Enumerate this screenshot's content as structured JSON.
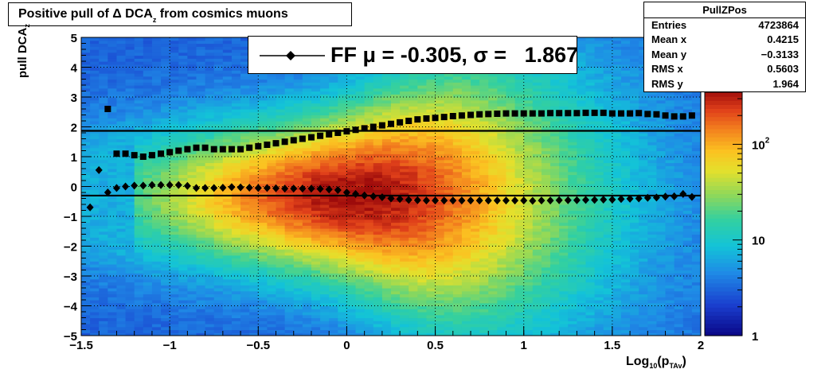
{
  "title": {
    "prefix": "Positive pull of ",
    "delta": "Δ",
    "mid": " DCA",
    "sub": "z",
    "suffix": " from cosmics muons"
  },
  "stats": {
    "name": "PullZPos",
    "rows": [
      {
        "label": "Entries",
        "value": "4723864"
      },
      {
        "label": "Mean x",
        "value": "0.4215"
      },
      {
        "label": "Mean y",
        "value": "−0.3133"
      },
      {
        "label": "RMS x",
        "value": "0.5603"
      },
      {
        "label": "RMS y",
        "value": "1.964"
      }
    ]
  },
  "legend": {
    "text": "FF μ = -0.305, σ =   1.867"
  },
  "ylabel": {
    "main": "pull DCA",
    "sub": "z"
  },
  "xlabel": {
    "main": "Log",
    "sub10": "10",
    "mid": "(p",
    "subT": "TAv",
    "end": ")"
  },
  "chart_data": {
    "type": "heatmap",
    "title": "Positive pull of Δ DCA_z from cosmics muons",
    "xlabel": "Log10(p_TAv)",
    "ylabel": "pull DCA_z",
    "xlim": [
      -1.5,
      2
    ],
    "ylim": [
      -5,
      5
    ],
    "zscale": "log",
    "x_ticks": [
      "−1.5",
      "−1",
      "−0.5",
      "0",
      "0.5",
      "1",
      "1.5",
      "2"
    ],
    "y_ticks": [
      "−5",
      "−4",
      "−3",
      "−2",
      "−1",
      "0",
      "1",
      "2",
      "3",
      "4",
      "5"
    ],
    "z_ticks": [
      "1",
      "10",
      "10^2"
    ],
    "grid": true,
    "fit_lines": [
      {
        "name": "mean",
        "y": -0.305
      },
      {
        "name": "sigma",
        "y": 1.867
      }
    ],
    "series": [
      {
        "name": "mean",
        "marker": "diamond",
        "x": [
          -1.45,
          -1.4,
          -1.35,
          -1.3,
          -1.25,
          -1.2,
          -1.15,
          -1.1,
          -1.05,
          -1.0,
          -0.95,
          -0.9,
          -0.85,
          -0.8,
          -0.75,
          -0.7,
          -0.65,
          -0.6,
          -0.55,
          -0.5,
          -0.45,
          -0.4,
          -0.35,
          -0.3,
          -0.25,
          -0.2,
          -0.15,
          -0.1,
          -0.05,
          0.0,
          0.05,
          0.1,
          0.15,
          0.2,
          0.25,
          0.3,
          0.35,
          0.4,
          0.45,
          0.5,
          0.55,
          0.6,
          0.65,
          0.7,
          0.75,
          0.8,
          0.85,
          0.9,
          0.95,
          1.0,
          1.05,
          1.1,
          1.15,
          1.2,
          1.25,
          1.3,
          1.35,
          1.4,
          1.45,
          1.5,
          1.55,
          1.6,
          1.65,
          1.7,
          1.75,
          1.8,
          1.85,
          1.9,
          1.95
        ],
        "y": [
          -0.7,
          0.55,
          -0.2,
          -0.05,
          0.0,
          0.03,
          0.03,
          0.05,
          0.05,
          0.05,
          0.05,
          0.02,
          -0.05,
          -0.05,
          -0.05,
          -0.04,
          -0.02,
          -0.03,
          -0.04,
          -0.05,
          -0.05,
          -0.06,
          -0.07,
          -0.07,
          -0.07,
          -0.07,
          -0.08,
          -0.1,
          -0.12,
          -0.2,
          -0.25,
          -0.3,
          -0.33,
          -0.36,
          -0.4,
          -0.42,
          -0.45,
          -0.46,
          -0.47,
          -0.47,
          -0.47,
          -0.47,
          -0.47,
          -0.47,
          -0.47,
          -0.47,
          -0.47,
          -0.47,
          -0.47,
          -0.47,
          -0.48,
          -0.47,
          -0.47,
          -0.46,
          -0.46,
          -0.46,
          -0.45,
          -0.45,
          -0.44,
          -0.44,
          -0.42,
          -0.41,
          -0.4,
          -0.38,
          -0.37,
          -0.34,
          -0.33,
          -0.25,
          -0.35
        ]
      },
      {
        "name": "sigma",
        "marker": "square",
        "x": [
          -1.35,
          -1.3,
          -1.25,
          -1.2,
          -1.15,
          -1.1,
          -1.05,
          -1.0,
          -0.95,
          -0.9,
          -0.85,
          -0.8,
          -0.75,
          -0.7,
          -0.65,
          -0.6,
          -0.55,
          -0.5,
          -0.45,
          -0.4,
          -0.35,
          -0.3,
          -0.25,
          -0.2,
          -0.15,
          -0.1,
          -0.05,
          0.0,
          0.05,
          0.1,
          0.15,
          0.2,
          0.25,
          0.3,
          0.35,
          0.4,
          0.45,
          0.5,
          0.55,
          0.6,
          0.65,
          0.7,
          0.75,
          0.8,
          0.85,
          0.9,
          0.95,
          1.0,
          1.05,
          1.1,
          1.15,
          1.2,
          1.25,
          1.3,
          1.35,
          1.4,
          1.45,
          1.5,
          1.55,
          1.6,
          1.65,
          1.7,
          1.75,
          1.8,
          1.85,
          1.9,
          1.95
        ],
        "y": [
          2.6,
          1.1,
          1.1,
          1.05,
          1.0,
          1.05,
          1.1,
          1.15,
          1.2,
          1.25,
          1.3,
          1.3,
          1.25,
          1.25,
          1.25,
          1.25,
          1.3,
          1.35,
          1.4,
          1.45,
          1.5,
          1.55,
          1.6,
          1.65,
          1.7,
          1.75,
          1.8,
          1.85,
          1.9,
          1.95,
          2.0,
          2.05,
          2.1,
          2.15,
          2.2,
          2.25,
          2.28,
          2.3,
          2.33,
          2.36,
          2.38,
          2.4,
          2.42,
          2.43,
          2.44,
          2.45,
          2.45,
          2.45,
          2.45,
          2.45,
          2.46,
          2.46,
          2.46,
          2.46,
          2.47,
          2.47,
          2.47,
          2.45,
          2.45,
          2.45,
          2.46,
          2.43,
          2.42,
          2.38,
          2.35,
          2.35,
          2.38
        ]
      }
    ]
  }
}
